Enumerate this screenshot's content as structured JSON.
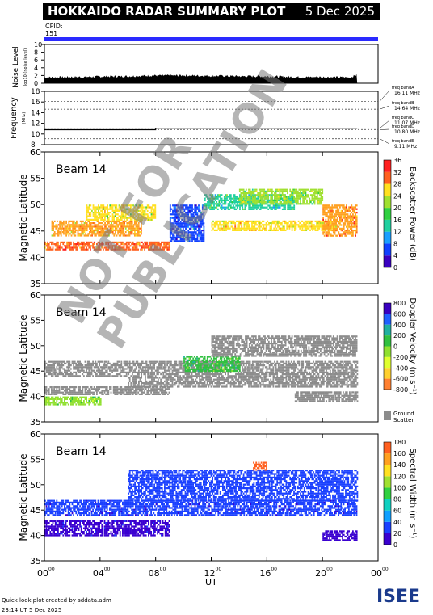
{
  "header": {
    "title": "HOKKAIDO RADAR SUMMARY PLOT",
    "date": "5 Dec 2025",
    "cpid_label": "CPID:",
    "cpid_value": "151"
  },
  "noise_panel": {
    "ylabel": "Noise Level",
    "yunit": "log10 (noise level)",
    "ticks": [
      "0",
      "2",
      "4",
      "6",
      "8",
      "10"
    ]
  },
  "freq_panel": {
    "ylabel": "Frequency",
    "yunit": "(MHz)",
    "ticks": [
      "8",
      "10",
      "12",
      "14",
      "16",
      "18"
    ],
    "bands": [
      {
        "label": "freq bandA",
        "value": "16.11 MHz"
      },
      {
        "label": "freq bandB",
        "value": "14.64 MHz"
      },
      {
        "label": "freq bandC",
        "value": "11.07 MHz"
      },
      {
        "label": "freq bandD",
        "value": "10.80 MHz"
      },
      {
        "label": "freq bandE",
        "value": "9.11 MHz"
      }
    ]
  },
  "panels": [
    {
      "beam": "Beam 14",
      "ylabel": "Magnetic Latitude",
      "yticks": [
        "35",
        "40",
        "45",
        "50",
        "55",
        "60"
      ],
      "cbar_label": "Backscatter Power (dB)",
      "cbar_ticks": [
        "0",
        "4",
        "8",
        "12",
        "16",
        "20",
        "24",
        "28",
        "32",
        "36"
      ]
    },
    {
      "beam": "Beam 14",
      "ylabel": "Magnetic Latitude",
      "yticks": [
        "35",
        "40",
        "45",
        "50",
        "55",
        "60"
      ],
      "cbar_label": "Doppler Velocity (m s⁻¹)",
      "cbar_ticks": [
        "800",
        "600",
        "400",
        "200",
        "0",
        "-200",
        "-400",
        "-600",
        "-800"
      ],
      "ground_label": "Ground",
      "ground_label2": "Scatter"
    },
    {
      "beam": "Beam 14",
      "ylabel": "Magnetic Latitude",
      "yticks": [
        "35",
        "40",
        "45",
        "50",
        "55",
        "60"
      ],
      "cbar_label": "Spectral Width (m s⁻¹)",
      "cbar_ticks": [
        "0",
        "20",
        "40",
        "60",
        "80",
        "100",
        "120",
        "140",
        "160",
        "180"
      ]
    }
  ],
  "xaxis": {
    "label": "UT",
    "ticks": [
      "00",
      "04",
      "08",
      "12",
      "16",
      "20",
      "00"
    ],
    "tick_sup": "00"
  },
  "watermark": "NOT FOR PUBLICATION",
  "footer": {
    "line1": "Quick look plot created by sddata.adm",
    "line2": "23:14 UT  5 Dec 2025"
  },
  "logo": "ISEE",
  "colors": {
    "title_bg": "#000000",
    "cpid_bar": "#2a2aff",
    "ground_scatter": "#8c8c8c"
  },
  "chart_data": [
    {
      "type": "area",
      "title": "Noise Level",
      "x_range_ut_hours": [
        0,
        24
      ],
      "ylim": [
        0,
        10
      ],
      "data_end_ut_hours": 22.5,
      "x": [
        0,
        2,
        4,
        6,
        8,
        10,
        12,
        14,
        16,
        18,
        20,
        22,
        22.5
      ],
      "values": [
        1.5,
        1.6,
        1.7,
        1.8,
        2.0,
        2.0,
        1.9,
        1.8,
        1.8,
        1.6,
        1.6,
        1.5,
        2.2
      ]
    },
    {
      "type": "line",
      "title": "Frequency",
      "ylim": [
        8,
        18
      ],
      "x": [
        0,
        8,
        8.01,
        22.5
      ],
      "values": [
        10.8,
        10.8,
        11.07,
        11.07
      ],
      "reference_lines_mhz": [
        16.11,
        14.64,
        11.07,
        10.8,
        9.11
      ]
    },
    {
      "type": "heatmap",
      "title": "Backscatter Power (dB)",
      "ylim": [
        35,
        60
      ],
      "zlim": [
        0,
        36
      ],
      "regions": [
        {
          "ut": [
            0,
            9
          ],
          "mlat": [
            41.5,
            43
          ],
          "value": 30
        },
        {
          "ut": [
            0.5,
            7
          ],
          "mlat": [
            44,
            47
          ],
          "value": 26
        },
        {
          "ut": [
            3,
            8
          ],
          "mlat": [
            47,
            50
          ],
          "value": 22
        },
        {
          "ut": [
            9,
            11.5
          ],
          "mlat": [
            43,
            50
          ],
          "value": 6
        },
        {
          "ut": [
            11.5,
            18
          ],
          "mlat": [
            49,
            52
          ],
          "value": 14
        },
        {
          "ut": [
            12,
            21
          ],
          "mlat": [
            45,
            47
          ],
          "value": 24
        },
        {
          "ut": [
            14,
            20
          ],
          "mlat": [
            50,
            53
          ],
          "value": 18
        },
        {
          "ut": [
            20,
            22.5
          ],
          "mlat": [
            44,
            50
          ],
          "value": 28
        }
      ]
    },
    {
      "type": "heatmap",
      "title": "Doppler Velocity (m s⁻¹)",
      "ylim": [
        35,
        60
      ],
      "zlim": [
        -800,
        800
      ],
      "regions": [
        {
          "ut": [
            0,
            9
          ],
          "mlat": [
            40.5,
            42
          ],
          "value": "ground"
        },
        {
          "ut": [
            0,
            6
          ],
          "mlat": [
            44,
            47
          ],
          "value": "ground"
        },
        {
          "ut": [
            0,
            4
          ],
          "mlat": [
            38.5,
            40
          ],
          "value": 50
        },
        {
          "ut": [
            6,
            22.5
          ],
          "mlat": [
            42,
            47
          ],
          "value": "ground"
        },
        {
          "ut": [
            10,
            14
          ],
          "mlat": [
            45,
            48
          ],
          "value": 150
        },
        {
          "ut": [
            12,
            22.5
          ],
          "mlat": [
            48,
            52
          ],
          "value": "ground"
        },
        {
          "ut": [
            18,
            22.5
          ],
          "mlat": [
            39,
            41
          ],
          "value": "ground"
        }
      ]
    },
    {
      "type": "heatmap",
      "title": "Spectral Width (m s⁻¹)",
      "ylim": [
        35,
        60
      ],
      "zlim": [
        0,
        180
      ],
      "regions": [
        {
          "ut": [
            0,
            9
          ],
          "mlat": [
            40,
            43
          ],
          "value": 15
        },
        {
          "ut": [
            0,
            22.5
          ],
          "mlat": [
            44,
            47
          ],
          "value": 20
        },
        {
          "ut": [
            6,
            22.5
          ],
          "mlat": [
            47,
            53
          ],
          "value": 25
        },
        {
          "ut": [
            20,
            22.5
          ],
          "mlat": [
            39,
            41
          ],
          "value": 10
        },
        {
          "ut": [
            15,
            16
          ],
          "mlat": [
            53,
            54.5
          ],
          "value": 160
        }
      ]
    }
  ]
}
